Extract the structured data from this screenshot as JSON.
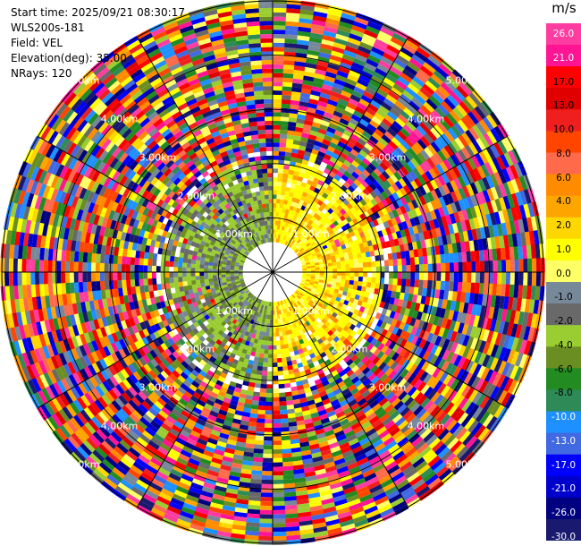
{
  "header": {
    "start_time": "Start time: 2025/09/21 08:30:17",
    "station": "WLS200s-181",
    "field": "Field: VEL",
    "elevation": "Elevation(deg): 35.00",
    "nrays": "NRays: 120"
  },
  "colorbar": {
    "unit": "m/s",
    "ticks": [
      "26.0",
      "21.0",
      "17.0",
      "13.0",
      "10.0",
      "8.0",
      "6.0",
      "4.0",
      "2.0",
      "1.0",
      "0.0",
      "-1.0",
      "-2.0",
      "-4.0",
      "-6.0",
      "-8.0",
      "-10.0",
      "-13.0",
      "-17.0",
      "-21.0",
      "-26.0",
      "-30.0"
    ],
    "colors": [
      "#ff3ca0",
      "#ff1493",
      "#ff0000",
      "#e00000",
      "#f01f1f",
      "#ff4500",
      "#ff6a4a",
      "#ff8c00",
      "#ffa500",
      "#ffd700",
      "#ffff00",
      "#ffff66",
      "#778899",
      "#696969",
      "#9acd32",
      "#6b8e23",
      "#228b22",
      "#2e8b57",
      "#1e90ff",
      "#4169e1",
      "#0000ff",
      "#0000cd",
      "#000080",
      "#191970"
    ]
  },
  "chart_data": {
    "type": "heatmap",
    "subtype": "ppi-polar",
    "field": "VEL",
    "nrays": 120,
    "elevation_deg": 35.0,
    "range_rings_km": [
      1.0,
      2.0,
      3.0,
      4.0,
      5.0
    ],
    "range_labels": [
      "1.00km",
      "2.00km",
      "3.00km",
      "4.00km",
      "5.00km"
    ],
    "value_range": [
      -30.0,
      26.0
    ],
    "unit": "m/s",
    "near_field": {
      "range_km": [
        0,
        2.0
      ],
      "dominant_values_east": [
        1.0,
        2.0,
        4.0
      ],
      "dominant_values_west": [
        -2.0,
        -4.0,
        0.0
      ]
    },
    "far_field": {
      "range_km": [
        2.0,
        5.0
      ],
      "description_values": "random / aliased noise across full scale"
    },
    "spokes_deg": [
      0,
      30,
      60,
      90,
      120,
      150,
      180,
      210,
      240,
      270,
      300,
      330
    ]
  }
}
